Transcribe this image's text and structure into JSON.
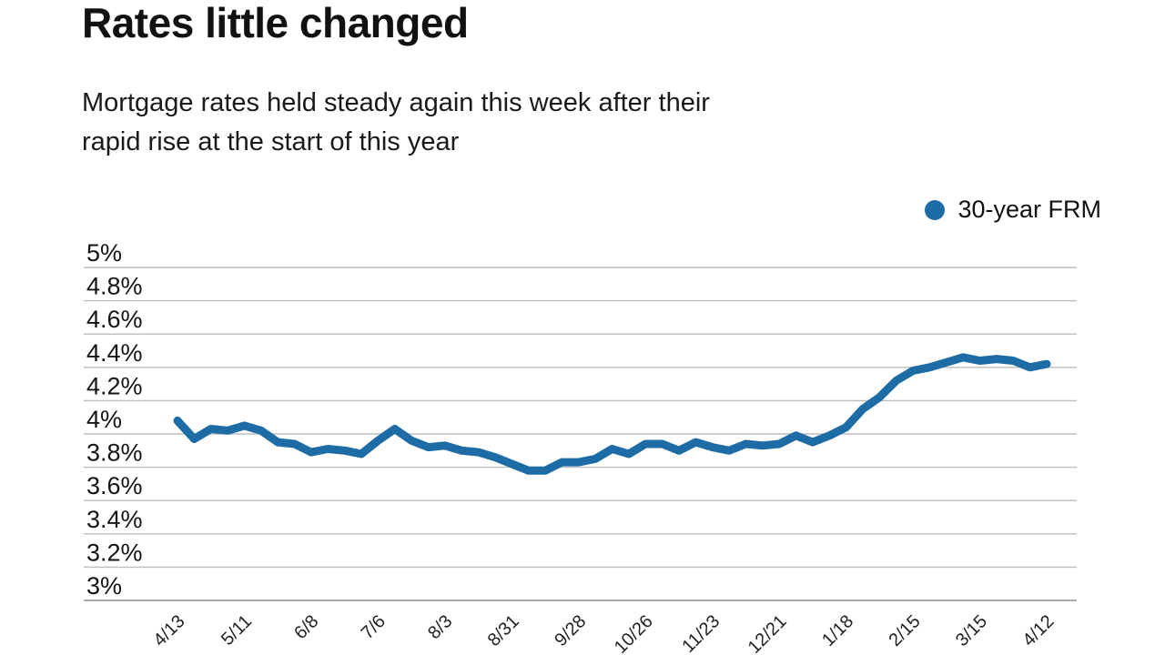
{
  "header": {
    "title": "Rates little changed",
    "subtitle_lines": [
      "Mortgage rates held steady again this week after their",
      "rapid rise at the start of this year"
    ]
  },
  "legend": {
    "marker": "filled-circle",
    "series_label": "30-year FRM"
  },
  "colors": {
    "series_blue": "#1e6ca6",
    "gridline": "#bdbdbd",
    "baseline": "#ababab",
    "text": "#1a1a1a",
    "background": "#ffffff"
  },
  "chart_data": {
    "type": "line",
    "title": "Rates little changed",
    "subtitle": "Mortgage rates held steady again this week after their rapid rise at the start of this year",
    "ylabel": "",
    "xlabel": "",
    "ylim": [
      3,
      5
    ],
    "grid": "horizontal",
    "legend_position": "top-right",
    "y_ticks": [
      {
        "value": 5.0,
        "label": "5%"
      },
      {
        "value": 4.8,
        "label": "4.8%"
      },
      {
        "value": 4.6,
        "label": "4.6%"
      },
      {
        "value": 4.4,
        "label": "4.4%"
      },
      {
        "value": 4.2,
        "label": "4.2%"
      },
      {
        "value": 4.0,
        "label": "4%"
      },
      {
        "value": 3.8,
        "label": "3.8%"
      },
      {
        "value": 3.6,
        "label": "3.6%"
      },
      {
        "value": 3.4,
        "label": "3.4%"
      },
      {
        "value": 3.2,
        "label": "3.2%"
      },
      {
        "value": 3.0,
        "label": "3%"
      }
    ],
    "x_tick_labels": [
      "4/13",
      "5/11",
      "6/8",
      "7/6",
      "8/3",
      "8/31",
      "9/28",
      "10/26",
      "11/23",
      "12/21",
      "1/18",
      "2/15",
      "3/15",
      "4/12"
    ],
    "x_tick_every": 4,
    "series": [
      {
        "name": "30-year FRM",
        "color": "#1e6ca6",
        "values": [
          4.08,
          3.97,
          4.03,
          4.02,
          4.05,
          4.02,
          3.95,
          3.94,
          3.89,
          3.91,
          3.9,
          3.88,
          3.96,
          4.03,
          3.96,
          3.92,
          3.93,
          3.9,
          3.89,
          3.86,
          3.82,
          3.78,
          3.78,
          3.83,
          3.83,
          3.85,
          3.91,
          3.88,
          3.94,
          3.94,
          3.9,
          3.95,
          3.92,
          3.9,
          3.94,
          3.93,
          3.94,
          3.99,
          3.95,
          3.99,
          4.04,
          4.15,
          4.22,
          4.32,
          4.38,
          4.4,
          4.43,
          4.46,
          4.44,
          4.45,
          4.44,
          4.4,
          4.42
        ]
      }
    ]
  }
}
